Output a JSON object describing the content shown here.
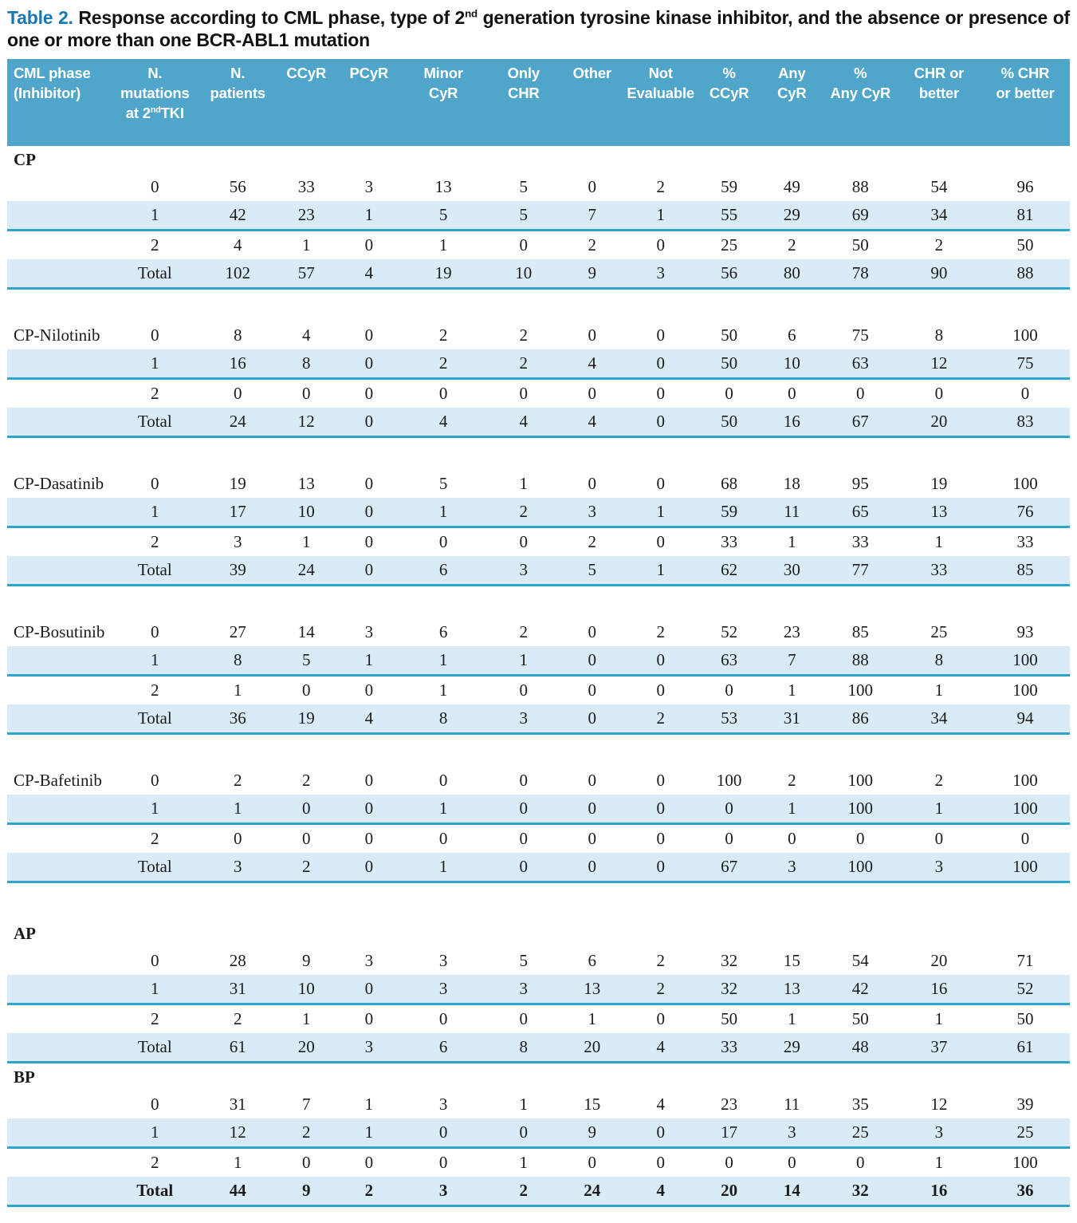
{
  "title": {
    "prefix": "Table 2.",
    "part1": " Response according to CML phase, type of 2",
    "sup": "nd",
    "part2": " generation tyrosine kinase inhibitor, and the absence or presence of one or more than one BCR-ABL1 mutation"
  },
  "colors": {
    "title_accent": "#1878b4",
    "header_background": "#50a5cb",
    "stripe_background": "#d9ebf6",
    "rule_teal": "#2fa6c9",
    "body_text": "#1b1b1b"
  },
  "columns": [
    {
      "label": "CML phase\n(Inhibitor)"
    },
    {
      "label": "N.\nmutations",
      "line3": {
        "pre": "at 2",
        "sup": "nd",
        "post": "TKI"
      }
    },
    {
      "label": "N.\npatients"
    },
    {
      "label": "CCyR"
    },
    {
      "label": "PCyR"
    },
    {
      "label": "Minor\nCyR"
    },
    {
      "label": "Only\nCHR"
    },
    {
      "label": "Other"
    },
    {
      "label": "Not\nEvaluable"
    },
    {
      "label": "%\nCCyR"
    },
    {
      "label": "Any\nCyR"
    },
    {
      "label": "%\nAny CyR"
    },
    {
      "label": "CHR or\nbetter"
    },
    {
      "label": "% CHR\nor better"
    }
  ],
  "sections": [
    {
      "heading": "CP",
      "gap_after": 40,
      "rows": [
        {
          "phase": "",
          "mut": "0",
          "values": [
            "56",
            "33",
            "3",
            "13",
            "5",
            "0",
            "2",
            "59",
            "49",
            "88",
            "54",
            "96"
          ]
        },
        {
          "phase": "",
          "mut": "1",
          "values": [
            "42",
            "23",
            "1",
            "5",
            "5",
            "7",
            "1",
            "55",
            "29",
            "69",
            "34",
            "81"
          ]
        },
        {
          "phase": "",
          "mut": "2",
          "values": [
            "4",
            "1",
            "0",
            "1",
            "0",
            "2",
            "0",
            "25",
            "2",
            "50",
            "2",
            "50"
          ]
        },
        {
          "phase": "",
          "mut": "Total",
          "values": [
            "102",
            "57",
            "4",
            "19",
            "10",
            "9",
            "3",
            "56",
            "80",
            "78",
            "90",
            "88"
          ]
        }
      ]
    },
    {
      "heading": null,
      "gap_after": 40,
      "rows": [
        {
          "phase": "CP-Nilotinib",
          "mut": "0",
          "values": [
            "8",
            "4",
            "0",
            "2",
            "2",
            "0",
            "0",
            "50",
            "6",
            "75",
            "8",
            "100"
          ]
        },
        {
          "phase": "",
          "mut": "1",
          "values": [
            "16",
            "8",
            "0",
            "2",
            "2",
            "4",
            "0",
            "50",
            "10",
            "63",
            "12",
            "75"
          ]
        },
        {
          "phase": "",
          "mut": "2",
          "values": [
            "0",
            "0",
            "0",
            "0",
            "0",
            "0",
            "0",
            "0",
            "0",
            "0",
            "0",
            "0"
          ]
        },
        {
          "phase": "",
          "mut": "Total",
          "values": [
            "24",
            "12",
            "0",
            "4",
            "4",
            "4",
            "0",
            "50",
            "16",
            "67",
            "20",
            "83"
          ]
        }
      ]
    },
    {
      "heading": null,
      "gap_after": 40,
      "rows": [
        {
          "phase": "CP-Dasatinib",
          "mut": "0",
          "values": [
            "19",
            "13",
            "0",
            "5",
            "1",
            "0",
            "0",
            "68",
            "18",
            "95",
            "19",
            "100"
          ]
        },
        {
          "phase": "",
          "mut": "1",
          "values": [
            "17",
            "10",
            "0",
            "1",
            "2",
            "3",
            "1",
            "59",
            "11",
            "65",
            "13",
            "76"
          ]
        },
        {
          "phase": "",
          "mut": "2",
          "values": [
            "3",
            "1",
            "0",
            "0",
            "0",
            "2",
            "0",
            "33",
            "1",
            "33",
            "1",
            "33"
          ]
        },
        {
          "phase": "",
          "mut": "Total",
          "values": [
            "39",
            "24",
            "0",
            "6",
            "3",
            "5",
            "1",
            "62",
            "30",
            "77",
            "33",
            "85"
          ]
        }
      ]
    },
    {
      "heading": null,
      "gap_after": 40,
      "rows": [
        {
          "phase": "CP-Bosutinib",
          "mut": "0",
          "values": [
            "27",
            "14",
            "3",
            "6",
            "2",
            "0",
            "2",
            "52",
            "23",
            "85",
            "25",
            "93"
          ]
        },
        {
          "phase": "",
          "mut": "1",
          "values": [
            "8",
            "5",
            "1",
            "1",
            "1",
            "0",
            "0",
            "63",
            "7",
            "88",
            "8",
            "100"
          ]
        },
        {
          "phase": "",
          "mut": "2",
          "values": [
            "1",
            "0",
            "0",
            "1",
            "0",
            "0",
            "0",
            "0",
            "1",
            "100",
            "1",
            "100"
          ]
        },
        {
          "phase": "",
          "mut": "Total",
          "values": [
            "36",
            "19",
            "4",
            "8",
            "3",
            "0",
            "2",
            "53",
            "31",
            "86",
            "34",
            "94"
          ]
        }
      ]
    },
    {
      "heading": null,
      "gap_after": 46,
      "rows": [
        {
          "phase": "CP-Bafetinib",
          "mut": "0",
          "values": [
            "2",
            "2",
            "0",
            "0",
            "0",
            "0",
            "0",
            "100",
            "2",
            "100",
            "2",
            "100"
          ]
        },
        {
          "phase": "",
          "mut": "1",
          "values": [
            "1",
            "0",
            "0",
            "1",
            "0",
            "0",
            "0",
            "0",
            "1",
            "100",
            "1",
            "100"
          ]
        },
        {
          "phase": "",
          "mut": "2",
          "values": [
            "0",
            "0",
            "0",
            "0",
            "0",
            "0",
            "0",
            "0",
            "0",
            "0",
            "0",
            "0"
          ]
        },
        {
          "phase": "",
          "mut": "Total",
          "values": [
            "3",
            "2",
            "0",
            "1",
            "0",
            "0",
            "0",
            "67",
            "3",
            "100",
            "3",
            "100"
          ]
        }
      ]
    },
    {
      "heading": "AP",
      "gap_after": 0,
      "rows": [
        {
          "phase": "",
          "mut": "0",
          "values": [
            "28",
            "9",
            "3",
            "3",
            "5",
            "6",
            "2",
            "32",
            "15",
            "54",
            "20",
            "71"
          ]
        },
        {
          "phase": "",
          "mut": "1",
          "values": [
            "31",
            "10",
            "0",
            "3",
            "3",
            "13",
            "2",
            "32",
            "13",
            "42",
            "16",
            "52"
          ]
        },
        {
          "phase": "",
          "mut": "2",
          "values": [
            "2",
            "1",
            "0",
            "0",
            "0",
            "1",
            "0",
            "50",
            "1",
            "50",
            "1",
            "50"
          ]
        },
        {
          "phase": "",
          "mut": "Total",
          "values": [
            "61",
            "20",
            "3",
            "6",
            "8",
            "20",
            "4",
            "33",
            "29",
            "48",
            "37",
            "61"
          ]
        }
      ]
    },
    {
      "heading": "BP",
      "gap_after": 0,
      "rows": [
        {
          "phase": "",
          "mut": "0",
          "values": [
            "31",
            "7",
            "1",
            "3",
            "1",
            "15",
            "4",
            "23",
            "11",
            "35",
            "12",
            "39"
          ]
        },
        {
          "phase": "",
          "mut": "1",
          "values": [
            "12",
            "2",
            "1",
            "0",
            "0",
            "9",
            "0",
            "17",
            "3",
            "25",
            "3",
            "25"
          ]
        },
        {
          "phase": "",
          "mut": "2",
          "values": [
            "1",
            "0",
            "0",
            "0",
            "1",
            "0",
            "0",
            "0",
            "0",
            "0",
            "1",
            "100"
          ]
        },
        {
          "phase": "",
          "mut": "Total",
          "bold": true,
          "values": [
            "44",
            "9",
            "2",
            "3",
            "2",
            "24",
            "4",
            "20",
            "14",
            "32",
            "16",
            "36"
          ]
        }
      ]
    }
  ]
}
